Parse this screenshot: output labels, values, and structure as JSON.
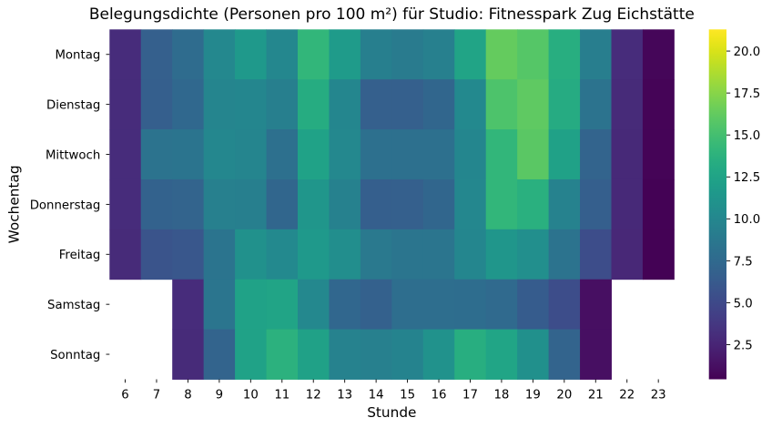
{
  "chart_data": {
    "type": "heatmap",
    "title": "Belegungsdichte (Personen pro 100 m²) für Studio: Fitnesspark Zug Eichstätte",
    "xlabel": "Stunde",
    "ylabel": "Wochentag",
    "x_ticks": [
      "6",
      "7",
      "8",
      "9",
      "10",
      "11",
      "12",
      "13",
      "14",
      "15",
      "16",
      "17",
      "18",
      "19",
      "20",
      "21",
      "22",
      "23"
    ],
    "categories": [
      "Montag",
      "Dienstag",
      "Mittwoch",
      "Donnerstag",
      "Freitag",
      "Samstag",
      "Sonntag"
    ],
    "series": [
      {
        "name": "Montag",
        "values": [
          3.0,
          6.7,
          7.7,
          10.1,
          11.6,
          10.0,
          14.1,
          11.8,
          9.3,
          9.0,
          9.4,
          12.5,
          16.3,
          15.7,
          13.5,
          9.2,
          3.0,
          0.7
        ]
      },
      {
        "name": "Dienstag",
        "values": [
          3.0,
          6.6,
          7.4,
          9.8,
          9.9,
          9.3,
          13.3,
          9.9,
          6.7,
          6.7,
          7.2,
          10.2,
          15.4,
          16.1,
          13.2,
          8.3,
          2.9,
          0.6
        ]
      },
      {
        "name": "Mittwoch",
        "values": [
          3.0,
          8.3,
          8.4,
          10.0,
          9.8,
          8.1,
          12.4,
          10.1,
          8.1,
          8.1,
          8.1,
          9.9,
          14.1,
          15.9,
          12.3,
          7.0,
          2.8,
          0.6
        ]
      },
      {
        "name": "Donnerstag",
        "values": [
          3.0,
          6.9,
          7.0,
          9.4,
          9.3,
          7.2,
          11.3,
          9.5,
          6.6,
          6.7,
          7.2,
          10.0,
          14.1,
          13.6,
          9.6,
          6.6,
          2.8,
          0.5
        ]
      },
      {
        "name": "Freitag",
        "values": [
          2.9,
          5.8,
          6.0,
          8.4,
          10.9,
          10.2,
          11.6,
          10.6,
          8.8,
          8.5,
          8.5,
          9.9,
          11.3,
          10.7,
          8.3,
          5.3,
          2.7,
          0.5
        ]
      },
      {
        "name": "Samstag",
        "values": [
          null,
          null,
          3.0,
          8.5,
          12.4,
          12.5,
          10.1,
          7.3,
          6.8,
          7.9,
          7.9,
          7.8,
          7.5,
          6.4,
          5.3,
          1.2,
          null,
          null
        ]
      },
      {
        "name": "Sonntag",
        "values": [
          null,
          null,
          2.9,
          7.0,
          12.4,
          13.7,
          12.3,
          9.6,
          9.4,
          9.7,
          11.0,
          13.5,
          12.6,
          10.8,
          7.0,
          1.2,
          null,
          null
        ]
      }
    ],
    "colormap": "viridis",
    "color_scale": {
      "vmin": 0.44,
      "vmax": 21.29
    },
    "colorbar_ticks": [
      "2.5",
      "5.0",
      "7.5",
      "10.0",
      "12.5",
      "15.0",
      "17.5",
      "20.0"
    ],
    "colorbar_tick_values": [
      2.5,
      5.0,
      7.5,
      10.0,
      12.5,
      15.0,
      17.5,
      20.0
    ],
    "legend_position": "right-colorbar",
    "grid": false,
    "missing_cells": "Samstag and Sonntag have no data for hours 6, 7, 22, 23"
  },
  "colors": {
    "background": "#ffffff",
    "text": "#000000",
    "viridis_stops": [
      "#440154",
      "#470d60",
      "#48186a",
      "#482374",
      "#472d7b",
      "#453781",
      "#424086",
      "#3e4989",
      "#3b528b",
      "#375b8d",
      "#33638d",
      "#2f6b8e",
      "#2c728e",
      "#297a8e",
      "#26828e",
      "#23898e",
      "#21918c",
      "#1f988b",
      "#1fa088",
      "#22a785",
      "#28ae80",
      "#32b67a",
      "#3fbc73",
      "#4ec36b",
      "#5ec962",
      "#70cf57",
      "#84d44b",
      "#98d83e",
      "#addc30",
      "#c2df23",
      "#d8e219",
      "#ece51b",
      "#fde725"
    ]
  }
}
